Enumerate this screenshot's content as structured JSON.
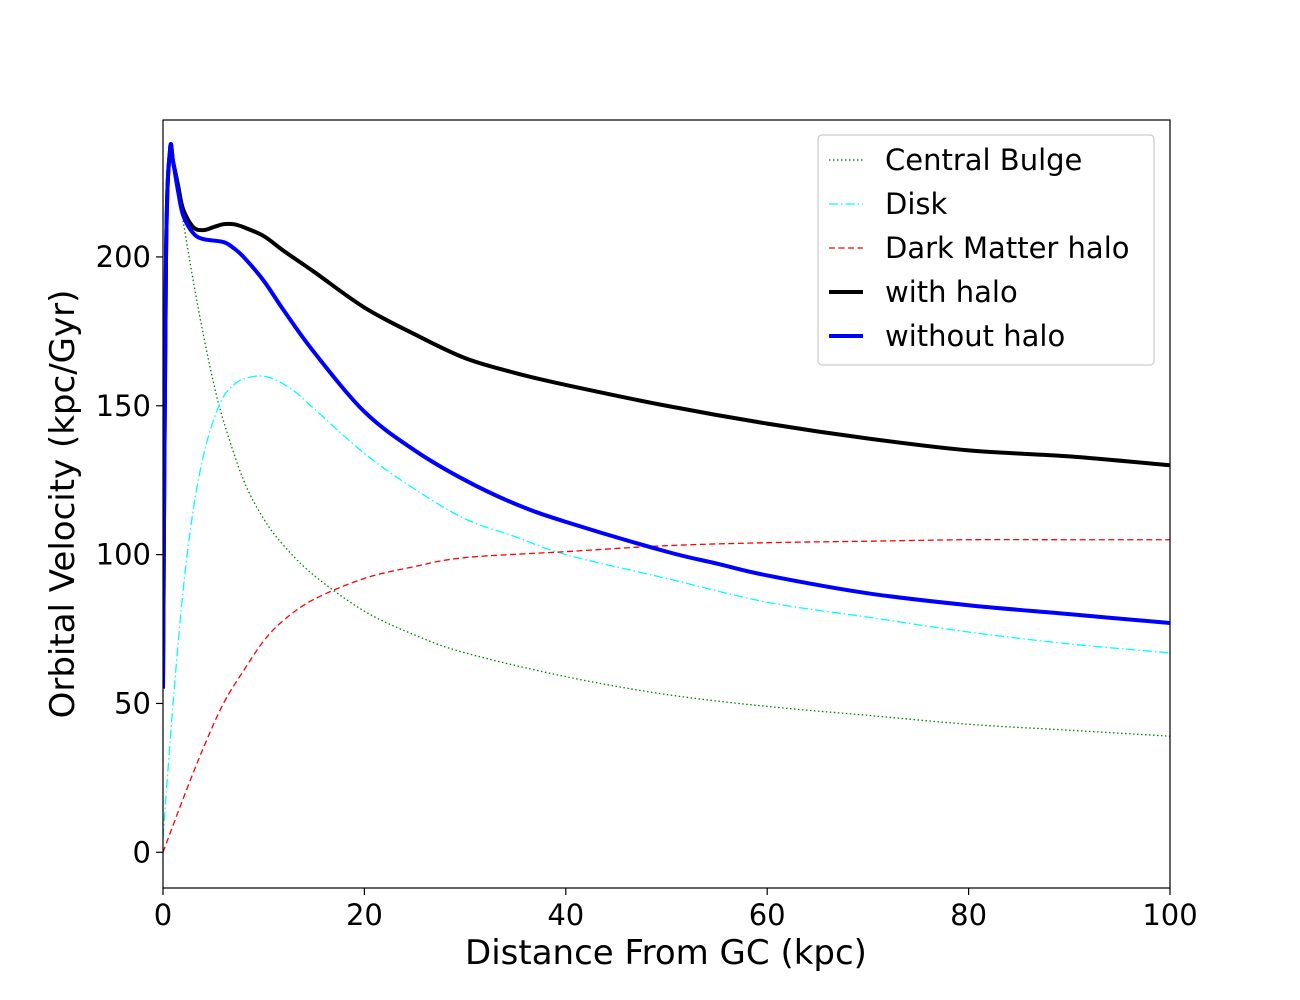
{
  "chart_data": {
    "type": "line",
    "xlabel": "Distance From GC (kpc)",
    "ylabel": "Orbital Velocity (kpc/Gyr)",
    "xlim": [
      0,
      100
    ],
    "ylim": [
      -12,
      246
    ],
    "x_ticks": [
      0,
      20,
      40,
      60,
      80,
      100
    ],
    "y_ticks": [
      0,
      50,
      100,
      150,
      200
    ],
    "grid": false,
    "legend_position": "top-right",
    "series": [
      {
        "name": "Central Bulge",
        "color": "#008000",
        "style": "dotted",
        "points": [
          [
            0.05,
            55
          ],
          [
            0.3,
            200
          ],
          [
            0.7,
            236
          ],
          [
            1,
            232
          ],
          [
            2,
            212
          ],
          [
            3,
            192
          ],
          [
            4,
            174
          ],
          [
            5,
            158
          ],
          [
            6,
            145
          ],
          [
            8,
            125
          ],
          [
            10,
            112
          ],
          [
            12,
            103
          ],
          [
            15,
            93
          ],
          [
            20,
            81
          ],
          [
            25,
            73
          ],
          [
            30,
            67
          ],
          [
            40,
            59
          ],
          [
            50,
            53
          ],
          [
            60,
            49
          ],
          [
            70,
            46
          ],
          [
            80,
            43
          ],
          [
            90,
            41
          ],
          [
            100,
            39
          ]
        ]
      },
      {
        "name": "Disk",
        "color": "#00ffff",
        "style": "dashdot",
        "points": [
          [
            0,
            5
          ],
          [
            1,
            50
          ],
          [
            2,
            88
          ],
          [
            3,
            115
          ],
          [
            4,
            133
          ],
          [
            5,
            145
          ],
          [
            6,
            153
          ],
          [
            7,
            157
          ],
          [
            8,
            159
          ],
          [
            9.5,
            160
          ],
          [
            11,
            159
          ],
          [
            13,
            155
          ],
          [
            15,
            149
          ],
          [
            20,
            134
          ],
          [
            25,
            122
          ],
          [
            30,
            112
          ],
          [
            35,
            106
          ],
          [
            40,
            100
          ],
          [
            50,
            92
          ],
          [
            60,
            84
          ],
          [
            70,
            79
          ],
          [
            80,
            74
          ],
          [
            90,
            70
          ],
          [
            100,
            67
          ]
        ]
      },
      {
        "name": "Dark Matter halo",
        "color": "#ff0000",
        "style": "dashed",
        "points": [
          [
            0,
            0
          ],
          [
            2,
            18
          ],
          [
            4,
            35
          ],
          [
            6,
            50
          ],
          [
            8,
            61
          ],
          [
            10,
            71
          ],
          [
            12,
            78
          ],
          [
            15,
            85
          ],
          [
            20,
            92
          ],
          [
            25,
            96
          ],
          [
            30,
            99
          ],
          [
            40,
            101
          ],
          [
            50,
            103
          ],
          [
            60,
            104
          ],
          [
            70,
            104.5
          ],
          [
            80,
            105
          ],
          [
            90,
            105
          ],
          [
            100,
            105
          ]
        ]
      },
      {
        "name": "with halo",
        "color": "#000000",
        "style": "solid-thick",
        "points": [
          [
            0,
            55
          ],
          [
            0.3,
            200
          ],
          [
            0.7,
            236
          ],
          [
            1,
            232
          ],
          [
            1.5,
            224
          ],
          [
            2,
            216
          ],
          [
            3,
            210
          ],
          [
            4,
            209
          ],
          [
            5,
            210
          ],
          [
            6,
            211
          ],
          [
            7,
            211
          ],
          [
            8,
            210
          ],
          [
            10,
            207
          ],
          [
            12,
            202
          ],
          [
            15,
            195
          ],
          [
            20,
            183
          ],
          [
            25,
            174
          ],
          [
            30,
            166
          ],
          [
            35,
            161
          ],
          [
            40,
            157
          ],
          [
            50,
            150
          ],
          [
            60,
            144
          ],
          [
            70,
            139
          ],
          [
            80,
            135
          ],
          [
            90,
            133
          ],
          [
            100,
            130
          ]
        ]
      },
      {
        "name": "without halo",
        "color": "#0000ff",
        "style": "solid-thick",
        "points": [
          [
            0,
            55
          ],
          [
            0.3,
            200
          ],
          [
            0.7,
            236
          ],
          [
            1,
            232
          ],
          [
            1.5,
            222
          ],
          [
            2,
            214
          ],
          [
            3,
            208
          ],
          [
            4,
            206
          ],
          [
            6,
            205
          ],
          [
            7,
            203
          ],
          [
            8,
            200
          ],
          [
            10,
            192
          ],
          [
            12,
            182
          ],
          [
            15,
            168
          ],
          [
            20,
            148
          ],
          [
            25,
            135
          ],
          [
            30,
            125
          ],
          [
            35,
            117
          ],
          [
            40,
            111
          ],
          [
            50,
            101
          ],
          [
            55,
            97
          ],
          [
            60,
            93
          ],
          [
            70,
            87
          ],
          [
            80,
            83
          ],
          [
            90,
            80
          ],
          [
            100,
            77
          ]
        ]
      }
    ]
  }
}
